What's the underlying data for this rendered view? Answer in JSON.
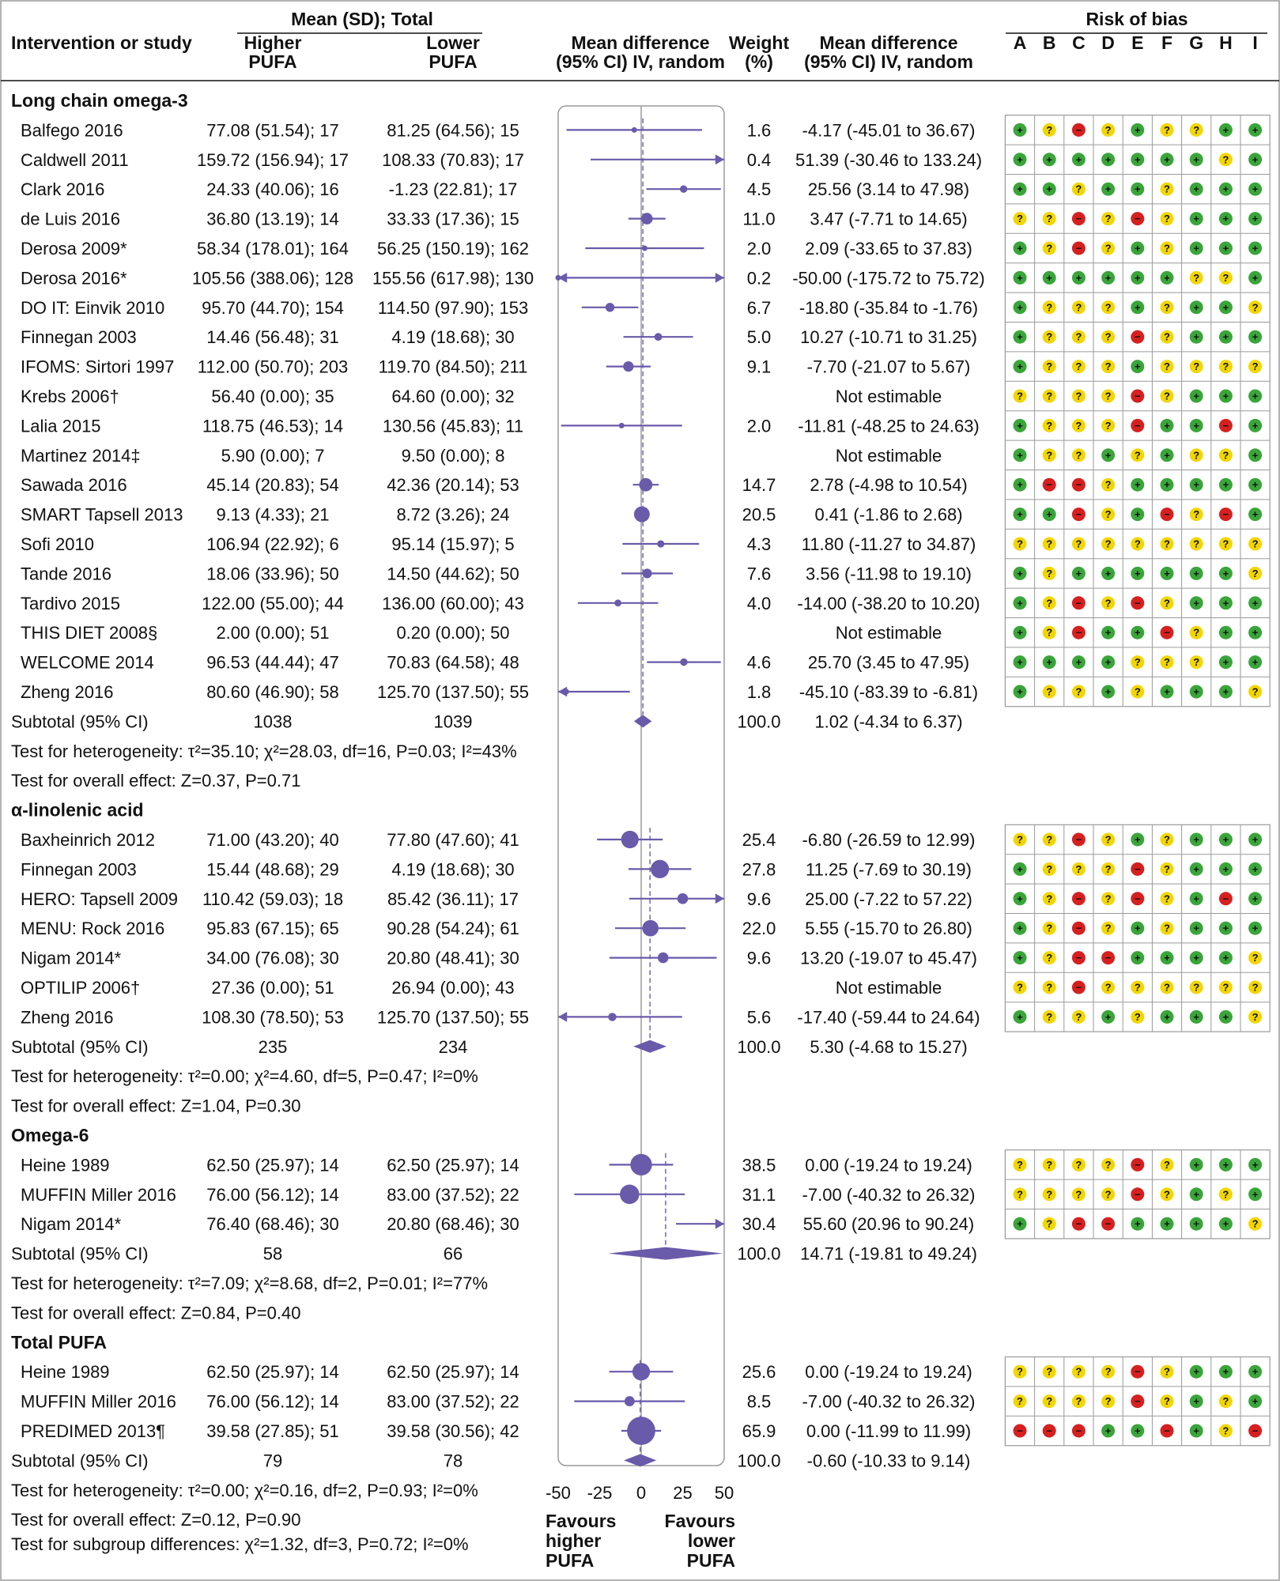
{
  "header": {
    "col_study": "Intervention or study",
    "col_mean_sd_total": "Mean (SD); Total",
    "col_higher": [
      "Higher",
      "PUFA"
    ],
    "col_lower": [
      "Lower",
      "PUFA"
    ],
    "col_md_plot": [
      "Mean difference",
      "(95% CI) IV, random"
    ],
    "col_weight": [
      "Weight",
      "(%)"
    ],
    "col_md_text": [
      "Mean difference",
      "(95% CI) IV, random"
    ],
    "col_rob": "Risk of bias",
    "rob_letters": [
      "A",
      "B",
      "C",
      "D",
      "E",
      "F",
      "G",
      "H",
      "I"
    ]
  },
  "footer": {
    "subgroup_test": "Test for subgroup differences:  χ²=1.32, df=3, P=0.72; I²=0%",
    "favours_left": [
      "Favours",
      "higher",
      "PUFA"
    ],
    "favours_right": [
      "Favours",
      "lower",
      "PUFA"
    ]
  },
  "chart_data": {
    "type": "forest",
    "xlim": [
      -50,
      50
    ],
    "xticks": [
      "-50",
      "-25",
      "0",
      "25",
      "50"
    ],
    "groups": [
      {
        "name": "Long chain omega-3",
        "rows": [
          {
            "study": "Balfego 2016",
            "higher": "77.08 (51.54); 17",
            "lower": "81.25 (64.56); 15",
            "weight": "1.6",
            "md_text": "-4.17 (-45.01 to 36.67)",
            "md": -4.17,
            "lo": -45.01,
            "hi": 36.67,
            "rob": "+?-?+??++"
          },
          {
            "study": "Caldwell 2011",
            "higher": "159.72 (156.94); 17",
            "lower": "108.33 (70.83); 17",
            "weight": "0.4",
            "md_text": "51.39 (-30.46 to 133.24)",
            "md": 51.39,
            "lo": -30.46,
            "hi": 133.24,
            "rob": "+++++++?+"
          },
          {
            "study": "Clark 2016",
            "higher": "24.33 (40.06); 16",
            "lower": "-1.23 (22.81); 17",
            "weight": "4.5",
            "md_text": "25.56 (3.14 to 47.98)",
            "md": 25.56,
            "lo": 3.14,
            "hi": 47.98,
            "rob": "++?++?+++"
          },
          {
            "study": "de Luis 2016",
            "higher": "36.80 (13.19); 14",
            "lower": "33.33 (17.36); 15",
            "weight": "11.0",
            "md_text": "3.47 (-7.71 to 14.65)",
            "md": 3.47,
            "lo": -7.71,
            "hi": 14.65,
            "rob": "??-?-?+++"
          },
          {
            "study": "Derosa 2009*",
            "higher": "58.34 (178.01); 164",
            "lower": "56.25 (150.19); 162",
            "weight": "2.0",
            "md_text": "2.09 (-33.65 to 37.83)",
            "md": 2.09,
            "lo": -33.65,
            "hi": 37.83,
            "rob": "+?-?+?+++"
          },
          {
            "study": "Derosa 2016*",
            "higher": "105.56 (388.06); 128",
            "lower": "155.56 (617.98); 130",
            "weight": "0.2",
            "md_text": "-50.00 (-175.72 to 75.72)",
            "md": -50.0,
            "lo": -175.72,
            "hi": 75.72,
            "rob": "++++++??+"
          },
          {
            "study": "DO IT: Einvik 2010",
            "higher": "95.70 (44.70); 154",
            "lower": "114.50 (97.90); 153",
            "weight": "6.7",
            "md_text": "-18.80 (-35.84 to -1.76)",
            "md": -18.8,
            "lo": -35.84,
            "hi": -1.76,
            "rob": "+???+?++?"
          },
          {
            "study": "Finnegan 2003",
            "higher": "14.46 (56.48); 31",
            "lower": "4.19 (18.68); 30",
            "weight": "5.0",
            "md_text": "10.27 (-10.71 to 31.25)",
            "md": 10.27,
            "lo": -10.71,
            "hi": 31.25,
            "rob": "+???-?+++"
          },
          {
            "study": "IFOMS: Sirtori 1997",
            "higher": "112.00 (50.70); 203",
            "lower": "119.70 (84.50); 211",
            "weight": "9.1",
            "md_text": "-7.70 (-21.07 to 5.67)",
            "md": -7.7,
            "lo": -21.07,
            "hi": 5.67,
            "rob": "+???+????"
          },
          {
            "study": "Krebs 2006†",
            "higher": "56.40 (0.00); 35",
            "lower": "64.60 (0.00); 32",
            "weight": "",
            "md_text": "Not estimable",
            "rob": "????-?+++"
          },
          {
            "study": "Lalia 2015",
            "higher": "118.75 (46.53); 14",
            "lower": "130.56 (45.83); 11",
            "weight": "2.0",
            "md_text": "-11.81 (-48.25 to 24.63)",
            "md": -11.81,
            "lo": -48.25,
            "hi": 24.63,
            "rob": "+???-++-+"
          },
          {
            "study": "Martinez 2014‡",
            "higher": "5.90 (0.00); 7",
            "lower": "9.50 (0.00); 8",
            "weight": "",
            "md_text": "Not estimable",
            "rob": "+??+?+??+"
          },
          {
            "study": "Sawada 2016",
            "higher": "45.14 (20.83); 54",
            "lower": "42.36 (20.14); 53",
            "weight": "14.7",
            "md_text": "2.78 (-4.98 to 10.54)",
            "md": 2.78,
            "lo": -4.98,
            "hi": 10.54,
            "rob": "+--?+++++"
          },
          {
            "study": "SMART Tapsell 2013",
            "higher": "9.13 (4.33); 21",
            "lower": "8.72 (3.26); 24",
            "weight": "20.5",
            "md_text": "0.41 (-1.86 to 2.68)",
            "md": 0.41,
            "lo": -1.86,
            "hi": 2.68,
            "rob": "++-?+-?-+"
          },
          {
            "study": "Sofi 2010",
            "higher": "106.94 (22.92); 6",
            "lower": "95.14 (15.97); 5",
            "weight": "4.3",
            "md_text": "11.80 (-11.27 to 34.87)",
            "md": 11.8,
            "lo": -11.27,
            "hi": 34.87,
            "rob": "?????????"
          },
          {
            "study": "Tande 2016",
            "higher": "18.06 (33.96); 50",
            "lower": "14.50 (44.62); 50",
            "weight": "7.6",
            "md_text": "3.56 (-11.98 to 19.10)",
            "md": 3.56,
            "lo": -11.98,
            "hi": 19.1,
            "rob": "+?++++++?"
          },
          {
            "study": "Tardivo 2015",
            "higher": "122.00 (55.00); 44",
            "lower": "136.00 (60.00); 43",
            "weight": "4.0",
            "md_text": "-14.00 (-38.20 to 10.20)",
            "md": -14.0,
            "lo": -38.2,
            "hi": 10.2,
            "rob": "+?-?-?+++"
          },
          {
            "study": "THIS DIET 2008§",
            "higher": "2.00 (0.00); 51",
            "lower": "0.20 (0.00); 50",
            "weight": "",
            "md_text": "Not estimable",
            "rob": "+?-++-?++"
          },
          {
            "study": "WELCOME 2014",
            "higher": "96.53 (44.44); 47",
            "lower": "70.83 (64.58); 48",
            "weight": "4.6",
            "md_text": "25.70 (3.45 to 47.95)",
            "md": 25.7,
            "lo": 3.45,
            "hi": 47.95,
            "rob": "++++???++"
          },
          {
            "study": "Zheng 2016",
            "higher": "80.60 (46.90); 58",
            "lower": "125.70 (137.50); 55",
            "weight": "1.8",
            "md_text": "-45.10 (-83.39 to -6.81)",
            "md": -45.1,
            "lo": -83.39,
            "hi": -6.81,
            "rob": "+??+?+++?"
          }
        ],
        "subtotal": {
          "label": "Subtotal (95% CI)",
          "higher": "1038",
          "lower": "1039",
          "weight": "100.0",
          "md_text": "1.02 (-4.34 to 6.37)",
          "md": 1.02,
          "lo": -4.34,
          "hi": 6.37
        },
        "heterogeneity": "Test for heterogeneity: τ²=35.10; χ²=28.03, df=16, P=0.03; I²=43%",
        "overall": "Test for overall effect: Z=0.37, P=0.71"
      },
      {
        "name": "α-linolenic acid",
        "rows": [
          {
            "study": "Baxheinrich 2012",
            "higher": "71.00 (43.20); 40",
            "lower": "77.80 (47.60); 41",
            "weight": "25.4",
            "md_text": "-6.80 (-26.59 to 12.99)",
            "md": -6.8,
            "lo": -26.59,
            "hi": 12.99,
            "rob": "??-?+?+++"
          },
          {
            "study": "Finnegan 2003",
            "higher": "15.44 (48.68); 29",
            "lower": "4.19 (18.68); 30",
            "weight": "27.8",
            "md_text": "11.25 (-7.69 to 30.19)",
            "md": 11.25,
            "lo": -7.69,
            "hi": 30.19,
            "rob": "+???-?+++"
          },
          {
            "study": "HERO: Tapsell 2009",
            "higher": "110.42 (59.03); 18",
            "lower": "85.42 (36.11); 17",
            "weight": "9.6",
            "md_text": "25.00 (-7.22 to 57.22)",
            "md": 25.0,
            "lo": -7.22,
            "hi": 57.22,
            "rob": "+?-?-?+-+"
          },
          {
            "study": "MENU: Rock 2016",
            "higher": "95.83 (67.15); 65",
            "lower": "90.28 (54.24); 61",
            "weight": "22.0",
            "md_text": "5.55 (-15.70 to 26.80)",
            "md": 5.55,
            "lo": -15.7,
            "hi": 26.8,
            "rob": "+?-?+?+++"
          },
          {
            "study": "Nigam 2014*",
            "higher": "34.00 (76.08); 30",
            "lower": "20.80 (48.41); 30",
            "weight": "9.6",
            "md_text": "13.20 (-19.07 to 45.47)",
            "md": 13.2,
            "lo": -19.07,
            "hi": 45.47,
            "rob": "+?--++++?"
          },
          {
            "study": "OPTILIP 2006†",
            "higher": "27.36 (0.00); 51",
            "lower": "26.94 (0.00); 43",
            "weight": "",
            "md_text": "Not estimable",
            "rob": "??-??????"
          },
          {
            "study": "Zheng 2016",
            "higher": "108.30 (78.50); 53",
            "lower": "125.70 (137.50); 55",
            "weight": "5.6",
            "md_text": "-17.40 (-59.44 to 24.64)",
            "md": -17.4,
            "lo": -59.44,
            "hi": 24.64,
            "rob": "+??+?+++?"
          }
        ],
        "subtotal": {
          "label": "Subtotal (95% CI)",
          "higher": "235",
          "lower": "234",
          "weight": "100.0",
          "md_text": "5.30 (-4.68 to 15.27)",
          "md": 5.3,
          "lo": -4.68,
          "hi": 15.27
        },
        "heterogeneity": "Test for heterogeneity: τ²=0.00; χ²=4.60, df=5, P=0.47; I²=0%",
        "overall": "Test for overall effect: Z=1.04, P=0.30"
      },
      {
        "name": "Omega-6",
        "rows": [
          {
            "study": "Heine 1989",
            "higher": "62.50 (25.97); 14",
            "lower": "62.50 (25.97); 14",
            "weight": "38.5",
            "md_text": "0.00 (-19.24 to 19.24)",
            "md": 0.0,
            "lo": -19.24,
            "hi": 19.24,
            "rob": "????-?+++"
          },
          {
            "study": "MUFFIN Miller 2016",
            "higher": "76.00 (56.12); 14",
            "lower": "83.00 (37.52); 22",
            "weight": "31.1",
            "md_text": "-7.00 (-40.32 to 26.32)",
            "md": -7.0,
            "lo": -40.32,
            "hi": 26.32,
            "rob": "????-?+?+"
          },
          {
            "study": "Nigam 2014*",
            "higher": "76.40 (68.46); 30",
            "lower": "20.80 (68.46); 30",
            "weight": "30.4",
            "md_text": "55.60 (20.96 to 90.24)",
            "md": 55.6,
            "lo": 20.96,
            "hi": 90.24,
            "rob": "+?--++++?"
          }
        ],
        "subtotal": {
          "label": "Subtotal (95% CI)",
          "higher": "58",
          "lower": "66",
          "weight": "100.0",
          "md_text": "14.71 (-19.81 to 49.24)",
          "md": 14.71,
          "lo": -19.81,
          "hi": 49.24
        },
        "heterogeneity": "Test for heterogeneity: τ²=7.09; χ²=8.68, df=2, P=0.01; I²=77%",
        "overall": "Test for overall effect: Z=0.84, P=0.40"
      },
      {
        "name": "Total PUFA",
        "rows": [
          {
            "study": "Heine 1989",
            "higher": "62.50 (25.97); 14",
            "lower": "62.50 (25.97); 14",
            "weight": "25.6",
            "md_text": "0.00 (-19.24 to 19.24)",
            "md": 0.0,
            "lo": -19.24,
            "hi": 19.24,
            "rob": "????-?+++"
          },
          {
            "study": "MUFFIN Miller 2016",
            "higher": "76.00 (56.12); 14",
            "lower": "83.00 (37.52); 22",
            "weight": "8.5",
            "md_text": "-7.00 (-40.32 to 26.32)",
            "md": -7.0,
            "lo": -40.32,
            "hi": 26.32,
            "rob": "????-?+?+"
          },
          {
            "study": "PREDIMED 2013¶",
            "higher": "39.58 (27.85); 51",
            "lower": "39.58 (30.56); 42",
            "weight": "65.9",
            "md_text": "0.00 (-11.99 to 11.99)",
            "md": 0.0,
            "lo": -11.99,
            "hi": 11.99,
            "rob": "---++-+?-"
          }
        ],
        "subtotal": {
          "label": "Subtotal (95% CI)",
          "higher": "79",
          "lower": "78",
          "weight": "100.0",
          "md_text": "-0.60 (-10.33 to 9.14)",
          "md": -0.6,
          "lo": -10.33,
          "hi": 9.14
        },
        "heterogeneity": "Test for heterogeneity: τ²=0.00; χ²=0.16, df=2, P=0.93; I²=0%",
        "overall": "Test for overall effect: Z=0.12, P=0.90"
      }
    ]
  },
  "colors": {
    "mark": "#6a5aaa",
    "rob_green": "#3aa53a",
    "rob_yellow": "#f2d600",
    "rob_red": "#d62020",
    "border": "#9a9a9a"
  }
}
